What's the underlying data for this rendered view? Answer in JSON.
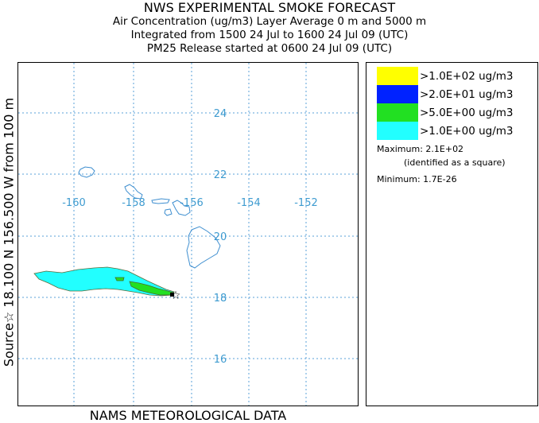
{
  "title": {
    "main": "NWS EXPERIMENTAL SMOKE FORECAST",
    "line2": "Air Concentration (ug/m3) Layer Average    0 m and  5000 m",
    "line3": "Integrated from 1500 24 Jul to 1600 24 Jul 09 (UTC)",
    "line4": "PM25 Release started at 0600 24 Jul 09 (UTC)"
  },
  "side_label": "Source☆ 18.100  N 156.500  W      from  100 m",
  "footer": "NAMS METEOROLOGICAL DATA",
  "map": {
    "lon_labels": [
      "-160",
      "-158",
      "-156",
      "-154",
      "-152"
    ],
    "lat_labels": [
      "24",
      "22",
      "20",
      "18",
      "16"
    ],
    "gridline_color": "#5aa0d8",
    "label_color": "#3e9bd0",
    "coast_color": "#3f8fd0",
    "source_marker": "star-icon"
  },
  "legend": {
    "items": [
      {
        "label": ">1.0E+02 ug/m3",
        "color": "#ffff00"
      },
      {
        "label": ">2.0E+01 ug/m3",
        "color": "#0022ff"
      },
      {
        "label": ">5.0E+00 ug/m3",
        "color": "#22e022"
      },
      {
        "label": ">1.0E+00 ug/m3",
        "color": "#22ffff"
      }
    ],
    "maximum": "Maximum: 2.1E+02",
    "identified": "(identified as a square)",
    "minimum": "Minimum: 1.7E-26"
  }
}
